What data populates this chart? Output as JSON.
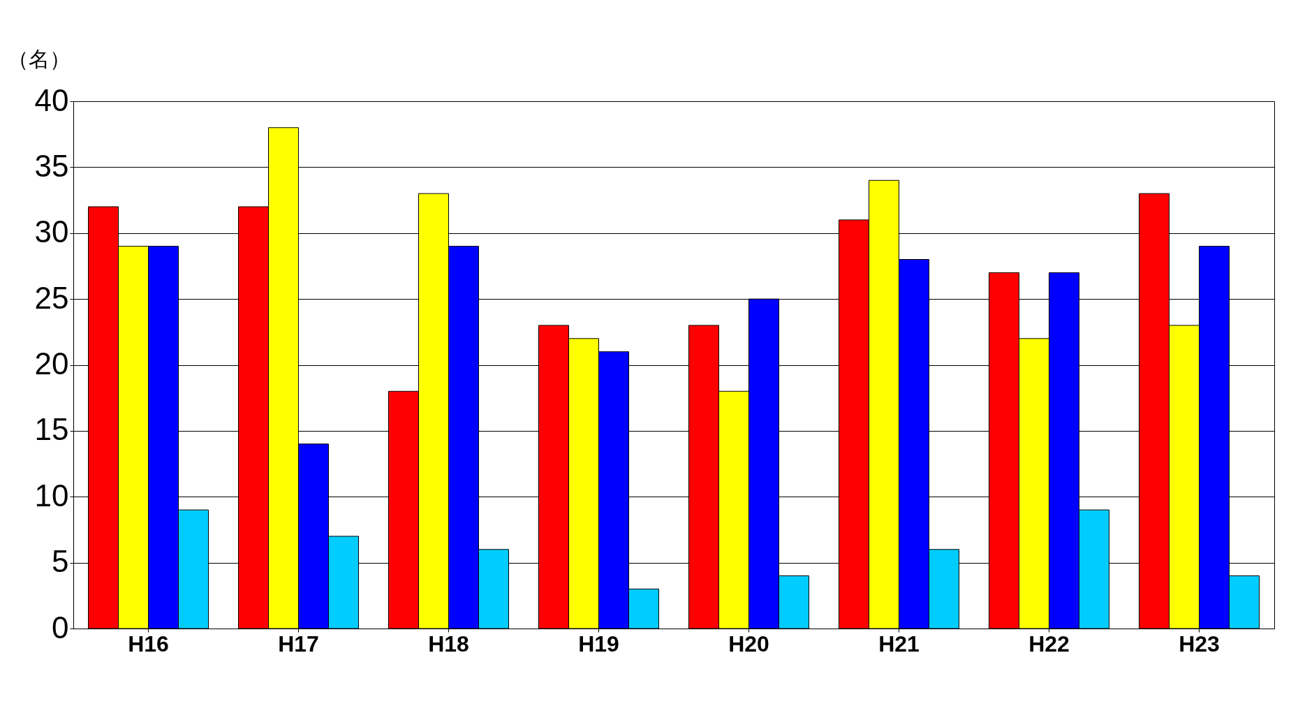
{
  "chart_data": {
    "type": "bar",
    "ylabel": "（名）",
    "categories": [
      "H16",
      "H17",
      "H18",
      "H19",
      "H20",
      "H21",
      "H22",
      "H23"
    ],
    "series": [
      {
        "color": "#ff0000",
        "values": [
          32,
          32,
          18,
          23,
          23,
          31,
          27,
          33
        ]
      },
      {
        "color": "#ffff00",
        "values": [
          29,
          38,
          33,
          22,
          18,
          34,
          22,
          23
        ]
      },
      {
        "color": "#0000ff",
        "values": [
          29,
          14,
          29,
          21,
          25,
          28,
          27,
          29
        ]
      },
      {
        "color": "#00ccff",
        "values": [
          9,
          7,
          6,
          3,
          4,
          6,
          9,
          4
        ]
      }
    ],
    "ylim": [
      0,
      40
    ],
    "yticks": [
      0,
      5,
      10,
      15,
      20,
      25,
      30,
      35,
      40
    ],
    "grid": "y",
    "legend": false
  }
}
